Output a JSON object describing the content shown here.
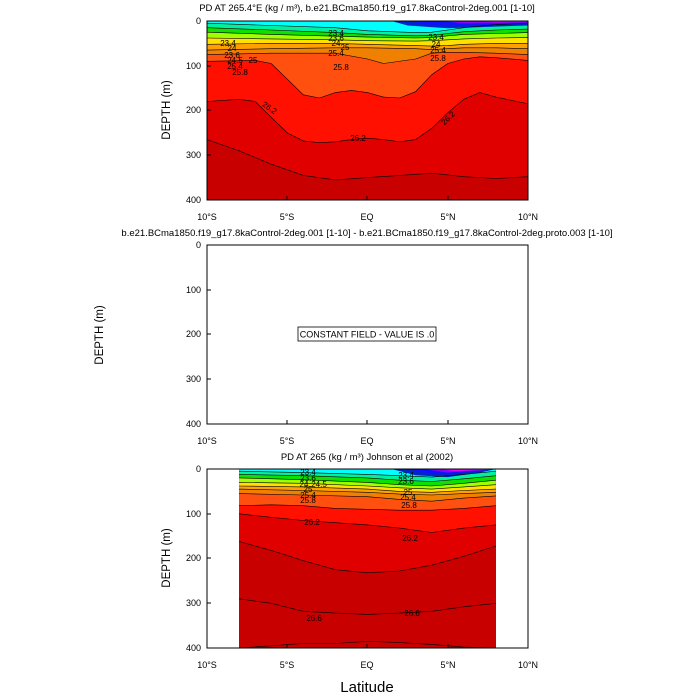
{
  "figure": {
    "xlabel": "Latitude",
    "colors": {
      "bands": [
        "#00ffff",
        "#00f0a0",
        "#10e000",
        "#a0ff00",
        "#ffe000",
        "#ffa000",
        "#f08000",
        "#ff5010",
        "#ff1000",
        "#e00000",
        "#c80000"
      ],
      "surface_anomaly": [
        "#0000c0",
        "#1010ff",
        "#a000ff",
        "#ff00ff"
      ],
      "contour_line": "#000000"
    }
  },
  "chart_data": [
    {
      "type": "contour",
      "title": "PD AT 265.4°E (kg / m³), b.e21.BCma1850.f19_g17.8kaControl-2deg.001 [1-10]",
      "xlabel": "",
      "ylabel": "DEPTH (m)",
      "xlim": [
        -10,
        10
      ],
      "ylim": [
        400,
        0
      ],
      "y_reversed": true,
      "xticks": [
        -10,
        -5,
        0,
        5,
        10
      ],
      "xtick_labels": [
        "10°S",
        "5°S",
        "EQ",
        "5°N",
        "10°N"
      ],
      "yticks": [
        0,
        100,
        200,
        300,
        400
      ],
      "ytick_labels": [
        "0",
        "100",
        "200",
        "300",
        "400"
      ],
      "data_extent": [
        -10,
        10
      ],
      "isopycnals": [
        {
          "level": 23.4,
          "x": [
            -10,
            -6,
            -2,
            0,
            3,
            4,
            5,
            6,
            8,
            10
          ],
          "depth": [
            5,
            10,
            15,
            22,
            26,
            25,
            20,
            15,
            8,
            5
          ]
        },
        {
          "level": 23.6,
          "x": [
            -10,
            -6,
            -2,
            0,
            3,
            4,
            5,
            6,
            8,
            10
          ],
          "depth": [
            15,
            20,
            26,
            30,
            33,
            32,
            28,
            24,
            20,
            18
          ]
        },
        {
          "level": 24.0,
          "x": [
            -10,
            -6,
            -2,
            0,
            3,
            4,
            5,
            6,
            8,
            10
          ],
          "depth": [
            25,
            30,
            34,
            36,
            38,
            37,
            33,
            30,
            28,
            26
          ]
        },
        {
          "level": 24.5,
          "x": [
            -10,
            -6,
            -2,
            0,
            3,
            4,
            5,
            6,
            8,
            10
          ],
          "depth": [
            38,
            40,
            42,
            44,
            45,
            44,
            42,
            40,
            38,
            37
          ]
        },
        {
          "level": 25.0,
          "x": [
            -10,
            -6,
            -2,
            0,
            3,
            4,
            5,
            6,
            8,
            10
          ],
          "depth": [
            52,
            50,
            50,
            52,
            55,
            56,
            55,
            52,
            50,
            50
          ]
        },
        {
          "level": 25.4,
          "x": [
            -10,
            -6,
            -2,
            0,
            3,
            4,
            5,
            6,
            8,
            10
          ],
          "depth": [
            65,
            62,
            60,
            60,
            62,
            64,
            62,
            60,
            60,
            62
          ]
        },
        {
          "level": 25.8,
          "x": [
            -10,
            -6,
            -2,
            0,
            1,
            3,
            4,
            5,
            6,
            8,
            10
          ],
          "depth": [
            75,
            72,
            72,
            85,
            95,
            85,
            72,
            70,
            70,
            72,
            75
          ]
        },
        {
          "level": 26.0,
          "x": [
            -10,
            -7,
            -6,
            -5,
            -4,
            -3,
            -2,
            -1,
            0,
            1,
            2,
            3,
            4,
            5,
            6,
            7,
            8,
            10
          ],
          "depth": [
            90,
            88,
            95,
            130,
            165,
            172,
            160,
            155,
            160,
            170,
            172,
            158,
            120,
            95,
            85,
            80,
            82,
            88
          ]
        },
        {
          "level": 26.2,
          "x": [
            -10,
            -8,
            -7,
            -6,
            -5,
            -4,
            -3,
            -2,
            -1,
            0,
            1,
            2,
            3,
            4,
            5,
            6,
            7,
            8,
            10
          ],
          "depth": [
            180,
            175,
            180,
            215,
            250,
            268,
            272,
            270,
            265,
            262,
            265,
            270,
            265,
            240,
            205,
            175,
            160,
            170,
            185
          ]
        },
        {
          "level": 26.4,
          "x": [
            -10,
            -8,
            -6,
            -4,
            -2,
            0,
            2,
            4,
            6,
            8,
            10
          ],
          "depth": [
            265,
            290,
            320,
            345,
            355,
            350,
            345,
            340,
            348,
            352,
            348
          ]
        }
      ],
      "contour_labels": [
        "23.4",
        "23.6",
        "24",
        "24.5",
        "25",
        "25.4",
        "25.8",
        "26.2",
        "26.2",
        "26.2"
      ]
    },
    {
      "type": "contour",
      "title": "b.e21.BCma1850.f19_g17.8kaControl-2deg.001 [1-10] - b.e21.BCma1850.f19_g17.8kaControl-2deg.proto.003 [1-10]",
      "xlabel": "",
      "ylabel": "DEPTH (m)",
      "xlim": [
        -10,
        10
      ],
      "ylim": [
        400,
        0
      ],
      "y_reversed": true,
      "xticks": [
        -10,
        -5,
        0,
        5,
        10
      ],
      "xtick_labels": [
        "10°S",
        "5°S",
        "EQ",
        "5°N",
        "10°N"
      ],
      "yticks": [
        0,
        100,
        200,
        300,
        400
      ],
      "ytick_labels": [
        "0",
        "100",
        "200",
        "300",
        "400"
      ],
      "constant_field": true,
      "constant_value": 0,
      "annotation": "CONSTANT FIELD - VALUE IS .0"
    },
    {
      "type": "contour",
      "title": "PD AT 265 (kg / m³) Johnson et al (2002)",
      "xlabel": "",
      "ylabel": "DEPTH (m)",
      "xlim": [
        -10,
        10
      ],
      "ylim": [
        400,
        0
      ],
      "y_reversed": true,
      "xticks": [
        -10,
        -5,
        0,
        5,
        10
      ],
      "xtick_labels": [
        "10°S",
        "5°S",
        "EQ",
        "5°N",
        "10°N"
      ],
      "yticks": [
        0,
        100,
        200,
        300,
        400
      ],
      "ytick_labels": [
        "0",
        "100",
        "200",
        "300",
        "400"
      ],
      "data_extent": [
        -8,
        8
      ],
      "isopycnals": [
        {
          "level": 23.4,
          "x": [
            -8,
            -4,
            0,
            2,
            4,
            6,
            8
          ],
          "depth": [
            5,
            8,
            12,
            15,
            18,
            12,
            5
          ]
        },
        {
          "level": 23.6,
          "x": [
            -8,
            -4,
            0,
            2,
            4,
            6,
            8
          ],
          "depth": [
            12,
            15,
            20,
            25,
            28,
            22,
            15
          ]
        },
        {
          "level": 24.0,
          "x": [
            -8,
            -4,
            0,
            2,
            4,
            6,
            8
          ],
          "depth": [
            20,
            24,
            30,
            35,
            38,
            32,
            25
          ]
        },
        {
          "level": 24.5,
          "x": [
            -8,
            -4,
            0,
            2,
            4,
            6,
            8
          ],
          "depth": [
            30,
            32,
            38,
            42,
            45,
            40,
            35
          ]
        },
        {
          "level": 25.0,
          "x": [
            -8,
            -4,
            0,
            2,
            4,
            6,
            8
          ],
          "depth": [
            38,
            40,
            45,
            50,
            52,
            48,
            45
          ]
        },
        {
          "level": 25.4,
          "x": [
            -8,
            -4,
            0,
            2,
            4,
            6,
            8
          ],
          "depth": [
            45,
            48,
            52,
            56,
            58,
            55,
            52
          ]
        },
        {
          "level": 25.8,
          "x": [
            -8,
            -4,
            0,
            2,
            4,
            6,
            8
          ],
          "depth": [
            55,
            58,
            62,
            68,
            72,
            65,
            60
          ]
        },
        {
          "level": 26.0,
          "x": [
            -8,
            -6,
            -4,
            -2,
            0,
            2,
            4,
            6,
            8
          ],
          "depth": [
            82,
            80,
            82,
            88,
            90,
            92,
            92,
            88,
            82
          ]
        },
        {
          "level": 26.2,
          "x": [
            -8,
            -6,
            -4,
            -2,
            0,
            2,
            4,
            6,
            8
          ],
          "depth": [
            100,
            108,
            115,
            120,
            125,
            132,
            142,
            132,
            125
          ]
        },
        {
          "level": 26.4,
          "x": [
            -8,
            -6,
            -4,
            -2,
            0,
            2,
            4,
            6,
            8
          ],
          "depth": [
            162,
            182,
            205,
            225,
            232,
            228,
            215,
            195,
            172
          ]
        },
        {
          "level": 26.6,
          "x": [
            -8,
            -6,
            -4,
            -2,
            0,
            2,
            4,
            6,
            8
          ],
          "depth": [
            290,
            300,
            318,
            322,
            325,
            322,
            318,
            308,
            300
          ]
        },
        {
          "level": 26.8,
          "x": [
            -8,
            -6,
            -4,
            -2,
            0,
            2,
            4,
            6,
            8
          ],
          "depth": [
            400,
            395,
            390,
            390,
            385,
            388,
            392,
            398,
            400
          ]
        }
      ],
      "contour_labels": [
        "23.4",
        "23.6",
        "24",
        "24.5",
        "25",
        "25.4",
        "25.8",
        "26.2",
        "26.2",
        "26.6",
        "26.6"
      ]
    }
  ]
}
